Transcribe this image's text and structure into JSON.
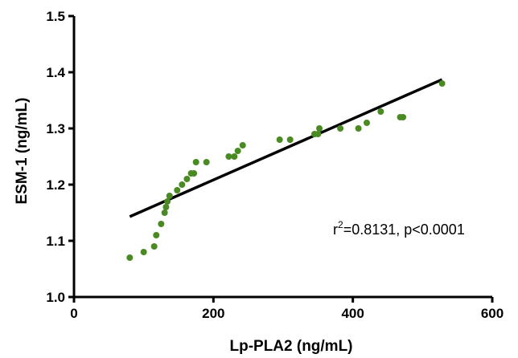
{
  "chart_data": {
    "type": "scatter",
    "xlabel": "Lp-PLA2 (ng/mL)",
    "ylabel": "ESM-1 (ng/mL)",
    "xlim": [
      0,
      600
    ],
    "ylim": [
      1.0,
      1.5
    ],
    "x_ticks": [
      "0",
      "200",
      "400",
      "600"
    ],
    "y_ticks": [
      "1.0",
      "1.1",
      "1.2",
      "1.3",
      "1.4",
      "1.5"
    ],
    "x_tick_values": [
      0,
      200,
      400,
      600
    ],
    "y_tick_values": [
      1.0,
      1.1,
      1.2,
      1.3,
      1.4,
      1.5
    ],
    "grid": false,
    "point_color": "#4a8a22",
    "line_color": "#000000",
    "annotation": {
      "prefix": "r",
      "superscript": "2",
      "suffix": "=0.8131, p<0.0001"
    },
    "points": [
      {
        "x": 80,
        "y": 1.07
      },
      {
        "x": 100,
        "y": 1.08
      },
      {
        "x": 115,
        "y": 1.09
      },
      {
        "x": 118,
        "y": 1.11
      },
      {
        "x": 125,
        "y": 1.13
      },
      {
        "x": 130,
        "y": 1.15
      },
      {
        "x": 132,
        "y": 1.16
      },
      {
        "x": 134,
        "y": 1.17
      },
      {
        "x": 137,
        "y": 1.18
      },
      {
        "x": 148,
        "y": 1.19
      },
      {
        "x": 155,
        "y": 1.2
      },
      {
        "x": 162,
        "y": 1.21
      },
      {
        "x": 168,
        "y": 1.22
      },
      {
        "x": 172,
        "y": 1.22
      },
      {
        "x": 175,
        "y": 1.24
      },
      {
        "x": 190,
        "y": 1.24
      },
      {
        "x": 222,
        "y": 1.25
      },
      {
        "x": 230,
        "y": 1.25
      },
      {
        "x": 235,
        "y": 1.26
      },
      {
        "x": 242,
        "y": 1.27
      },
      {
        "x": 295,
        "y": 1.28
      },
      {
        "x": 310,
        "y": 1.28
      },
      {
        "x": 345,
        "y": 1.29
      },
      {
        "x": 350,
        "y": 1.29
      },
      {
        "x": 352,
        "y": 1.3
      },
      {
        "x": 382,
        "y": 1.3
      },
      {
        "x": 408,
        "y": 1.3
      },
      {
        "x": 420,
        "y": 1.31
      },
      {
        "x": 440,
        "y": 1.33
      },
      {
        "x": 468,
        "y": 1.32
      },
      {
        "x": 472,
        "y": 1.32
      },
      {
        "x": 528,
        "y": 1.38
      }
    ],
    "fit_line": {
      "x": [
        80,
        528
      ],
      "y": [
        1.143,
        1.387
      ]
    }
  }
}
